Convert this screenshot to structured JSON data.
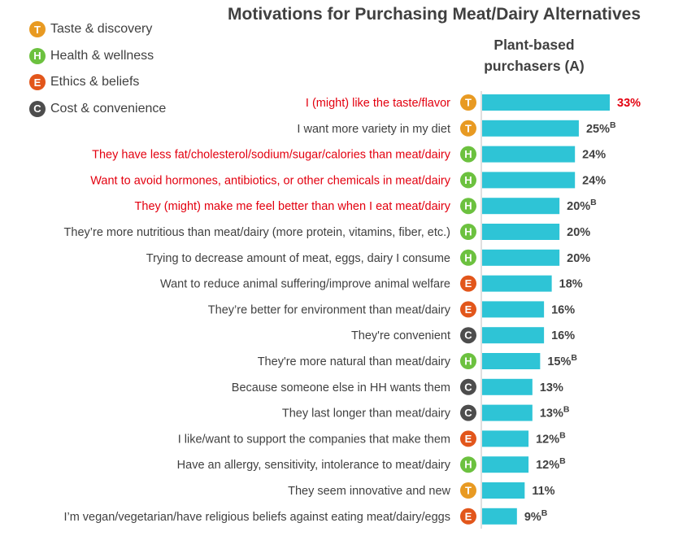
{
  "legend": [
    {
      "code": "T",
      "label": "Taste & discovery",
      "color": "#e89a22"
    },
    {
      "code": "H",
      "label": "Health & wellness",
      "color": "#6cc13f"
    },
    {
      "code": "E",
      "label": "Ethics & beliefs",
      "color": "#e2561b"
    },
    {
      "code": "C",
      "label": "Cost & convenience",
      "color": "#4d4d4d"
    }
  ],
  "colors": {
    "bar": "#2ec4d6",
    "highlight": "#e3000f",
    "text": "#404040",
    "axis": "#bfbfbf"
  },
  "chart_data": {
    "type": "bar",
    "orientation": "horizontal",
    "title": "Motivations for Purchasing Meat/Dairy Alternatives",
    "column_header": [
      "Plant-based",
      "purchasers (A)"
    ],
    "unit": "%",
    "xlim": [
      0,
      35
    ],
    "categories": [
      "I (might) like the taste/flavor",
      "I want more variety in my diet",
      "They have less fat/cholesterol/sodium/sugar/calories than meat/dairy",
      "Want to avoid hormones, antibiotics, or other chemicals in meat/dairy",
      "They (might) make me feel better than when I eat meat/dairy",
      "They’re more nutritious than meat/dairy (more protein, vitamins, fiber, etc.)",
      "Trying to decrease amount of meat, eggs, dairy I consume",
      "Want to reduce animal suffering/improve animal welfare",
      "They’re better for environment than meat/dairy",
      "They're convenient",
      "They're more natural than meat/dairy",
      "Because someone else in HH wants them",
      "They last longer than meat/dairy",
      "I like/want to support the companies that make them",
      "Have an allergy, sensitivity, intolerance to meat/dairy",
      "They seem innovative and new",
      "I’m vegan/vegetarian/have religious beliefs against eating meat/dairy/eggs"
    ],
    "values": [
      33,
      25,
      24,
      24,
      20,
      20,
      20,
      18,
      16,
      16,
      15,
      13,
      13,
      12,
      12,
      11,
      9
    ],
    "value_labels": [
      "33%",
      "25%",
      "24%",
      "24%",
      "20%",
      "20%",
      "20%",
      "18%",
      "16%",
      "16%",
      "15%",
      "13%",
      "13%",
      "12%",
      "12%",
      "11%",
      "9%"
    ],
    "motivation": [
      "T",
      "T",
      "H",
      "H",
      "H",
      "H",
      "H",
      "E",
      "E",
      "C",
      "H",
      "C",
      "C",
      "E",
      "H",
      "T",
      "E"
    ],
    "superscripts": [
      "",
      "B",
      "",
      "",
      "B",
      "",
      "",
      "",
      "",
      "",
      "B",
      "",
      "B",
      "B",
      "B",
      "",
      "B"
    ],
    "highlighted": [
      true,
      false,
      true,
      true,
      true,
      false,
      false,
      false,
      false,
      false,
      false,
      false,
      false,
      false,
      false,
      false,
      false
    ],
    "value_highlighted": [
      true,
      false,
      false,
      false,
      false,
      false,
      false,
      false,
      false,
      false,
      false,
      false,
      false,
      false,
      false,
      false,
      false
    ]
  }
}
